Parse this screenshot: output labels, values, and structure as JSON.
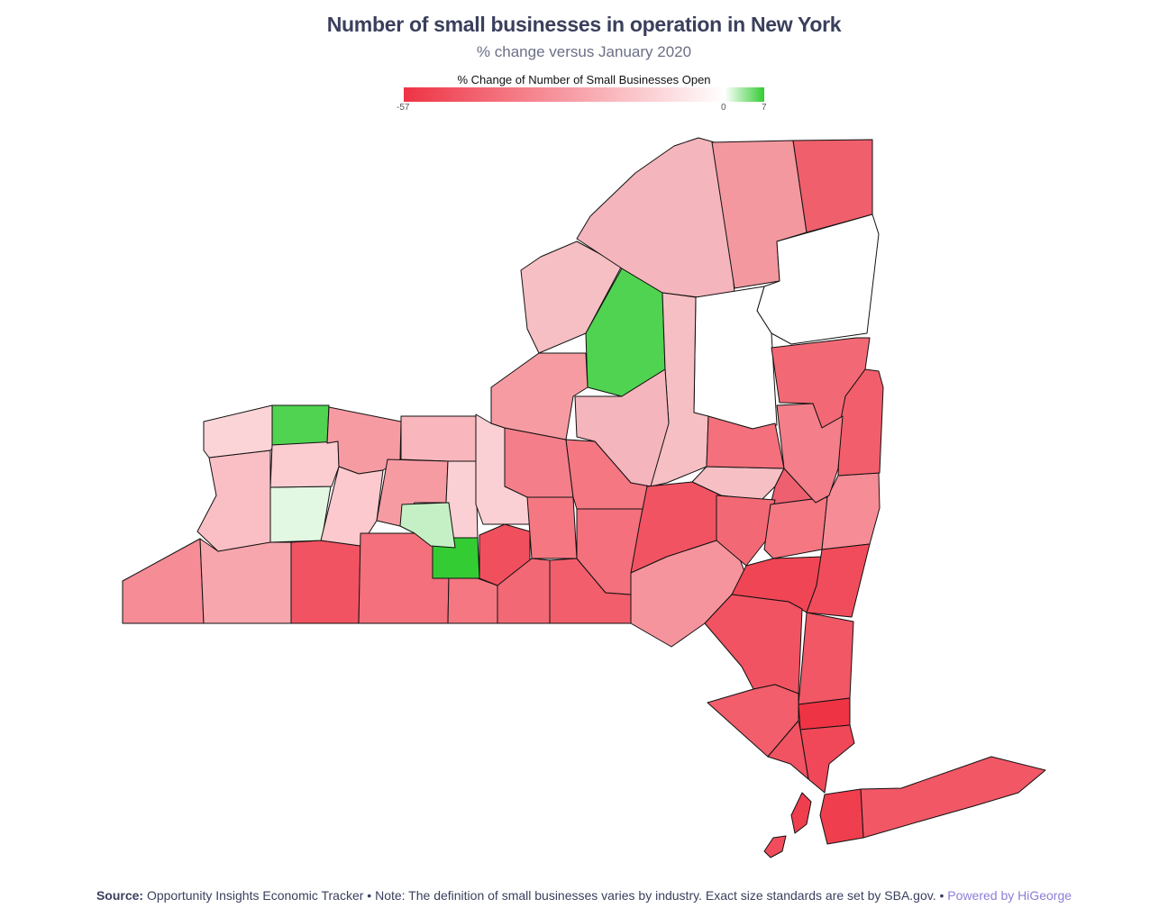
{
  "title": "Number of small businesses in operation in New York",
  "subtitle": "% change versus January 2020",
  "legend": {
    "title": "% Change of Number of Small Businesses Open",
    "min": -57,
    "zero": 0,
    "max": 7,
    "min_label": "-57",
    "zero_label": "0",
    "max_label": "7",
    "neg_color": "#ee3344",
    "zero_color": "#ffffff",
    "pos_color": "#33cc33"
  },
  "footer": {
    "source_label": "Source:",
    "source_text": "Opportunity Insights Economic Tracker • Note: The definition of small businesses varies by industry. Exact size standards are set by SBA.gov. •",
    "powered": "Powered by HiGeorge"
  },
  "regions_values": [
    -32,
    -25,
    -48,
    1,
    -18,
    -12,
    6,
    -14,
    -28,
    -20,
    -15,
    -28,
    -13,
    -40,
    -38,
    -49,
    -13,
    -38,
    -42,
    7,
    2,
    -45,
    -40,
    -36,
    -28,
    -38,
    -48,
    -30,
    -42,
    -38,
    -40,
    -32,
    -52,
    -42,
    -45,
    -36,
    -48,
    -47,
    -57,
    -50,
    -45,
    -51,
    -48,
    -47,
    -54
  ]
}
